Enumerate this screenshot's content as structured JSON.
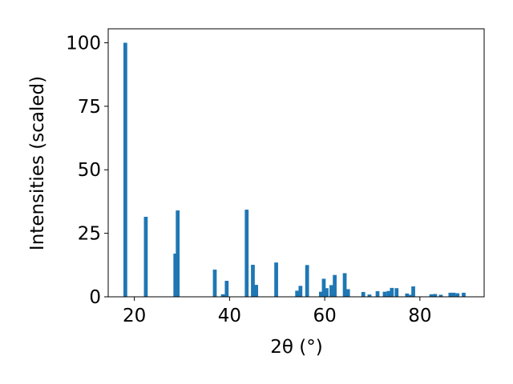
{
  "chart_data": {
    "type": "bar",
    "title": "",
    "xlabel": "2θ (°)",
    "ylabel": "Intensities (scaled)",
    "xlim": [
      14.5,
      93.5
    ],
    "ylim": [
      0,
      105.5
    ],
    "xticks": [
      20,
      40,
      60,
      80
    ],
    "yticks": [
      0,
      25,
      50,
      75,
      100
    ],
    "grid": false,
    "bar_color": "#1f77b4",
    "bar_width": 0.8,
    "x": [
      18.1,
      22.4,
      28.6,
      29.1,
      36.9,
      38.6,
      39.4,
      43.6,
      44.9,
      45.6,
      49.8,
      54.2,
      54.9,
      56.3,
      59.2,
      59.8,
      60.4,
      61.4,
      62.1,
      64.2,
      64.9,
      68.1,
      69.4,
      71.1,
      72.6,
      73.4,
      74.1,
      75.1,
      77.3,
      78.1,
      78.6,
      82.4,
      83.2,
      84.4,
      86.4,
      87.1,
      87.9,
      89.2
    ],
    "values": [
      100,
      31.5,
      17,
      34,
      10.7,
      1,
      6.3,
      34.3,
      12.6,
      4.7,
      13.5,
      2.4,
      4.3,
      12.5,
      2,
      7.1,
      3.4,
      4.6,
      8.6,
      9.3,
      3,
      1.9,
      0.9,
      2.2,
      2,
      2.3,
      3.5,
      3.4,
      1.3,
      0.8,
      4.1,
      1,
      1.1,
      0.8,
      1.6,
      1.6,
      1.4,
      1.6
    ]
  }
}
